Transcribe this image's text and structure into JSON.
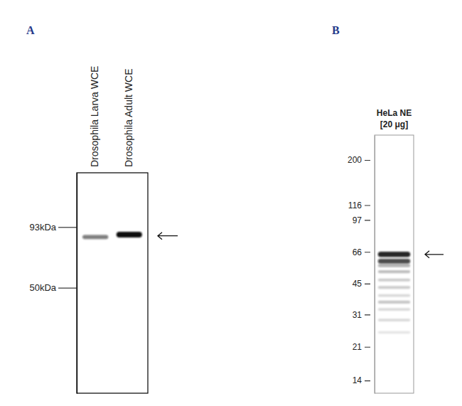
{
  "chart_data": [
    {
      "type": "western_blot",
      "title": "A",
      "categories": [
        "Drosophila Larva WCE",
        "Drosophila Adult WCE"
      ],
      "values": [
        [
          84
        ],
        [
          86
        ]
      ],
      "intensity": [
        [
          0.55
        ],
        [
          1
        ]
      ],
      "log": "y",
      "ylim": [
        162,
        17
      ],
      "yticks": [
        {
          "value": 93,
          "label": "93kDa"
        },
        {
          "value": 50,
          "label": "50kDa"
        }
      ],
      "arrow": 85
    },
    {
      "type": "western_blot",
      "title": "B",
      "categories": [
        [
          "HeLa NE",
          "[20 μg]"
        ]
      ],
      "values": [
        [
          64,
          59,
          56,
          52,
          47,
          43,
          39,
          36,
          33,
          29,
          25
        ]
      ],
      "intensity": [
        [
          0.9,
          0.75,
          0.3,
          0.25,
          0.2,
          0.2,
          0.15,
          0.22,
          0.15,
          0.15,
          0.1
        ]
      ],
      "log": "y",
      "ylim": [
        270,
        12
      ],
      "yticks": [
        200,
        116,
        97,
        66,
        45,
        31,
        21,
        14
      ],
      "arrow": 64
    }
  ]
}
